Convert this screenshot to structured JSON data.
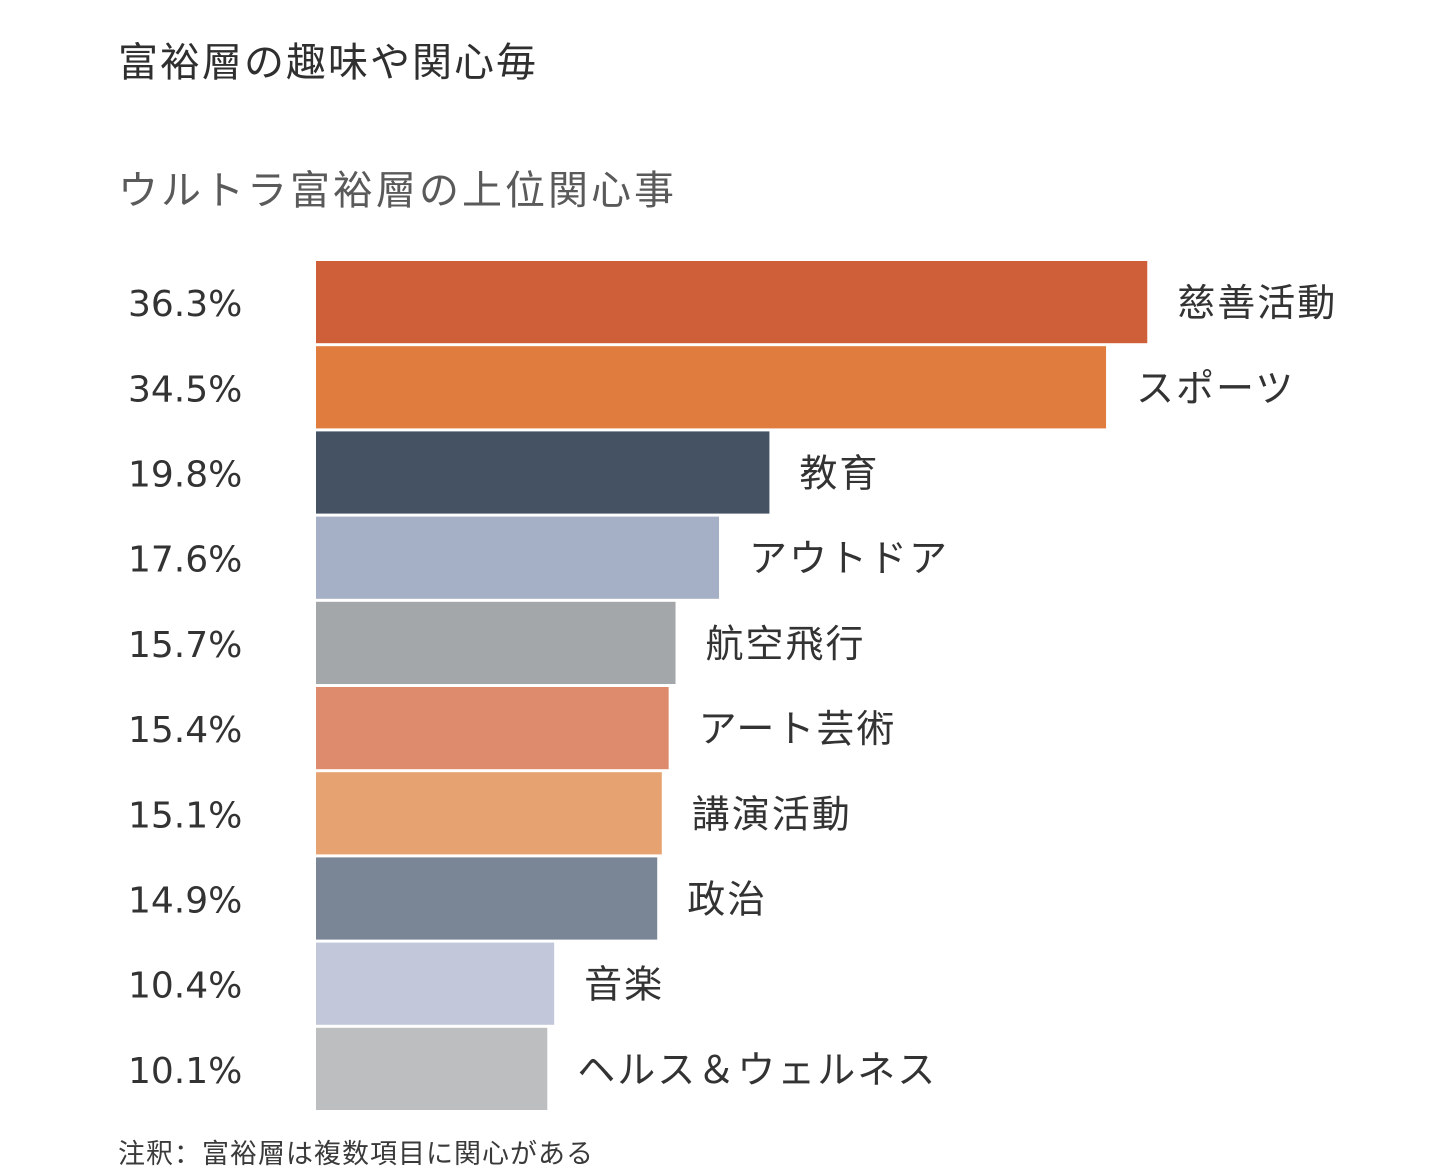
{
  "page": {
    "title": "富裕層の趣味や関心毎",
    "footnote": "注釈：富裕層は複数項目に関心がある"
  },
  "chart_data": {
    "type": "bar",
    "orientation": "horizontal",
    "title": "ウルトラ富裕層の上位関心事",
    "categories": [
      "慈善活動",
      "スポーツ",
      "教育",
      "アウトドア",
      "航空飛行",
      "アート芸術",
      "講演活動",
      "政治",
      "音楽",
      "ヘルス＆ウェルネス"
    ],
    "values": [
      36.3,
      34.5,
      19.8,
      17.6,
      15.7,
      15.4,
      15.1,
      14.9,
      10.4,
      10.1
    ],
    "value_labels": [
      "36.3%",
      "34.5%",
      "19.8%",
      "17.6%",
      "15.7%",
      "15.4%",
      "15.1%",
      "14.9%",
      "10.4%",
      "10.1%"
    ],
    "colors": [
      "#cf5f38",
      "#e07c3e",
      "#445264",
      "#a5afc5",
      "#a4a7aa",
      "#de8a6c",
      "#e6a270",
      "#7a8595",
      "#c2c8d9",
      "#bcbec0"
    ],
    "grid": false,
    "legend": "none"
  }
}
